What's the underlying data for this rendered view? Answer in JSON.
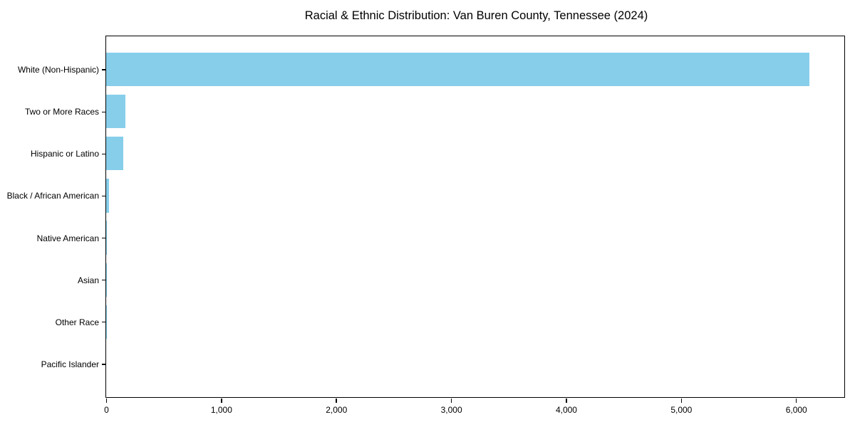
{
  "chart_data": {
    "type": "bar",
    "orientation": "horizontal",
    "title": "Racial & Ethnic Distribution: Van Buren County, Tennessee (2024)",
    "categories": [
      "White (Non-Hispanic)",
      "Two or More Races",
      "Hispanic or Latino",
      "Black / African American",
      "Native American",
      "Asian",
      "Other Race",
      "Pacific Islander"
    ],
    "values": [
      6114,
      170,
      150,
      22,
      6,
      5,
      2,
      0
    ],
    "xlabel": "",
    "ylabel": "",
    "xlim": [
      0,
      6420
    ],
    "x_ticks": [
      0,
      1000,
      2000,
      3000,
      4000,
      5000,
      6000
    ],
    "x_tick_labels": [
      "0",
      "1,000",
      "2,000",
      "3,000",
      "4,000",
      "5,000",
      "6,000"
    ],
    "bar_color": "#87CEEB",
    "spine_color": "#000000",
    "text_color": "#000000",
    "background_color": "#FFFFFF",
    "grid": false,
    "legend_position": "none"
  }
}
